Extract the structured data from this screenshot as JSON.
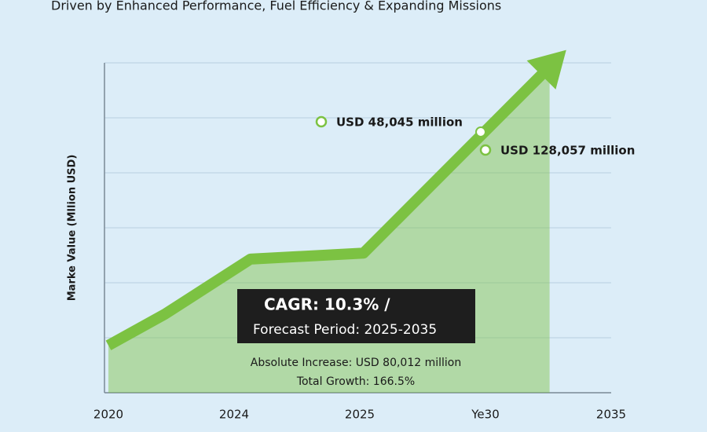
{
  "chart_data": {
    "type": "area",
    "subtitle": "Driven by Enhanced Performance, Fuel Efficiency & Expanding Missions",
    "y_label": "Marke Value (Mllion USD)",
    "x": [
      0,
      0.45,
      1.13,
      2.03,
      3.51
    ],
    "series": [
      {
        "color": "#7cc242",
        "values": [
          0.86,
          1.43,
          2.43,
          2.54,
          5.93
        ]
      }
    ],
    "xlim": [
      0,
      4
    ],
    "xticks": [
      {
        "value": 0,
        "label": "2020"
      },
      {
        "value": 1,
        "label": "2024"
      },
      {
        "value": 2,
        "label": "2025"
      },
      {
        "value": 3,
        "label": "Ye30"
      },
      {
        "value": 4,
        "label": "2035"
      }
    ],
    "ylim": [
      0,
      6
    ],
    "grid_lines": [
      1,
      2,
      3,
      4,
      5,
      6
    ],
    "annotations": [
      "USD 48,045 million",
      "USD 128,057 million",
      "CAGR: 10.3% /",
      "Forecast Period: 2025-2035",
      "Absolute Increase: USD 80,012 million",
      "Total Growth: 166.5%"
    ]
  }
}
